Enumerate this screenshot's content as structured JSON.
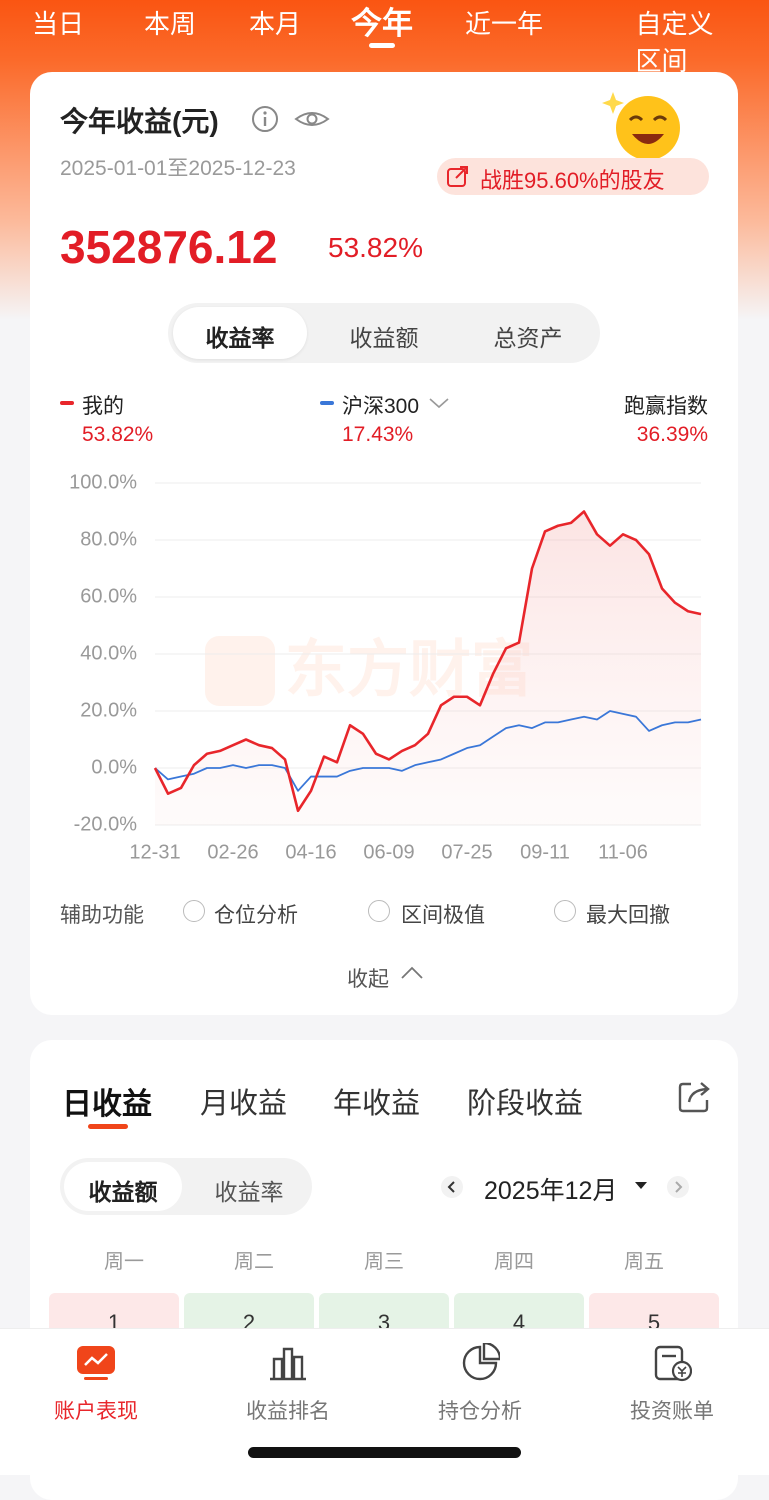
{
  "tabs": [
    "当日",
    "本周",
    "本月",
    "今年",
    "近一年",
    "自定义区间"
  ],
  "summary": {
    "title": "今年收益(元)",
    "date_range": "2025-01-01至2025-12-23",
    "badge": "战胜95.60%的股友",
    "amount": "352876.12",
    "rate": "53.82%"
  },
  "metric_tabs": [
    "收益率",
    "收益额",
    "总资产"
  ],
  "chart_data": {
    "type": "line",
    "categories": [
      "12-31",
      null,
      null,
      null,
      null,
      null,
      "02-26",
      null,
      null,
      null,
      null,
      null,
      "04-16",
      null,
      null,
      null,
      null,
      null,
      "06-09",
      null,
      null,
      null,
      null,
      null,
      "07-25",
      null,
      null,
      null,
      null,
      null,
      "09-11",
      null,
      null,
      null,
      null,
      null,
      "11-06",
      null,
      null,
      null,
      null,
      null,
      null
    ],
    "series": [
      {
        "name": "我的",
        "color": "#e8262b",
        "latest": "53.82%",
        "values": [
          0,
          -9,
          -7,
          1,
          5,
          6,
          8,
          10,
          8,
          7,
          3,
          -15,
          -8,
          4,
          2,
          15,
          12,
          5,
          3,
          6,
          8,
          12,
          22,
          25,
          25,
          22,
          33,
          42,
          44,
          70,
          83,
          85,
          86,
          90,
          82,
          78,
          82,
          80,
          75,
          63,
          58,
          55,
          54
        ]
      },
      {
        "name": "沪深300",
        "color": "#3a77d8",
        "latest": "17.43%",
        "values": [
          0,
          -4,
          -3,
          -2,
          0,
          0,
          1,
          0,
          1,
          1,
          0,
          -8,
          -3,
          -3,
          -3,
          -1,
          0,
          0,
          0,
          -1,
          1,
          2,
          3,
          5,
          7,
          8,
          11,
          14,
          15,
          14,
          16,
          16,
          17,
          18,
          17,
          20,
          19,
          18,
          13,
          15,
          16,
          16,
          17
        ]
      }
    ],
    "excess": {
      "label": "跑赢指数",
      "value": "36.39%"
    },
    "ylim": [
      -20,
      100
    ],
    "yticks": [
      {
        "value": 100,
        "label": "100.0%"
      },
      {
        "value": 80,
        "label": "80.0%"
      },
      {
        "value": 60,
        "label": "60.0%"
      },
      {
        "value": 40,
        "label": "40.0%"
      },
      {
        "value": 20,
        "label": "20.0%"
      },
      {
        "value": 0,
        "label": "0.0%"
      },
      {
        "value": -20,
        "label": "-20.0%"
      }
    ],
    "grid": true,
    "watermark": "东方财富"
  },
  "tools": {
    "label": "辅助功能",
    "options": [
      "仓位分析",
      "区间极值",
      "最大回撤"
    ],
    "collapse": "收起"
  },
  "income": {
    "tabs": [
      "日收益",
      "月收益",
      "年收益",
      "阶段收益"
    ],
    "toggle": [
      "收益额",
      "收益率"
    ],
    "month": "2025年12月",
    "weekdays": [
      "周一",
      "周二",
      "周三",
      "周四",
      "周五"
    ],
    "days": [
      "1",
      "2",
      "3",
      "4",
      "5"
    ]
  },
  "nav": [
    "账户表现",
    "收益排名",
    "持仓分析",
    "投资账单"
  ]
}
